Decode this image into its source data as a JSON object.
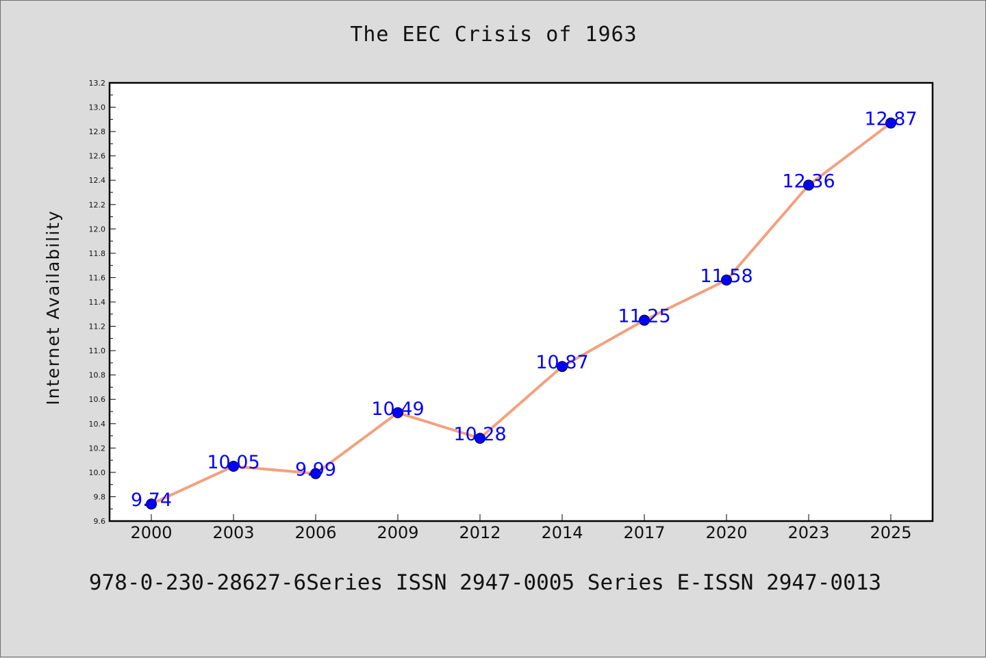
{
  "title": "The EEC Crisis of 1963",
  "footer": "978-0-230-28627-6Series ISSN 2947-0005 Series E-ISSN 2947-0013",
  "colors": {
    "background": "#dcdcdc",
    "plot_background": "#ffffff",
    "line": "#f4a07e",
    "marker": "#0000ff",
    "data_label": "#0000ff"
  },
  "chart_data": {
    "type": "line",
    "title": "The EEC Crisis of 1963",
    "xlabel": "",
    "ylabel": "Internet Availability",
    "categories": [
      "2000",
      "2003",
      "2006",
      "2009",
      "2012",
      "2014",
      "2017",
      "2020",
      "2023",
      "2025"
    ],
    "values": [
      9.74,
      10.05,
      9.99,
      10.49,
      10.28,
      10.87,
      11.25,
      11.58,
      12.36,
      12.87
    ],
    "ylim": [
      9.6,
      13.2
    ],
    "yticks": [
      "9.6",
      "9.8",
      "10.0",
      "10.2",
      "10.4",
      "10.6",
      "10.8",
      "11.0",
      "11.2",
      "11.4",
      "11.6",
      "11.8",
      "12.0",
      "12.2",
      "12.4",
      "12.6",
      "12.8",
      "13.0",
      "13.2"
    ],
    "data_labels": [
      "9.74",
      "10.05",
      "9.99",
      "10.49",
      "10.28",
      "10.87",
      "11.25",
      "11.58",
      "12.36",
      "12.87"
    ],
    "grid": false,
    "legend": "none"
  }
}
